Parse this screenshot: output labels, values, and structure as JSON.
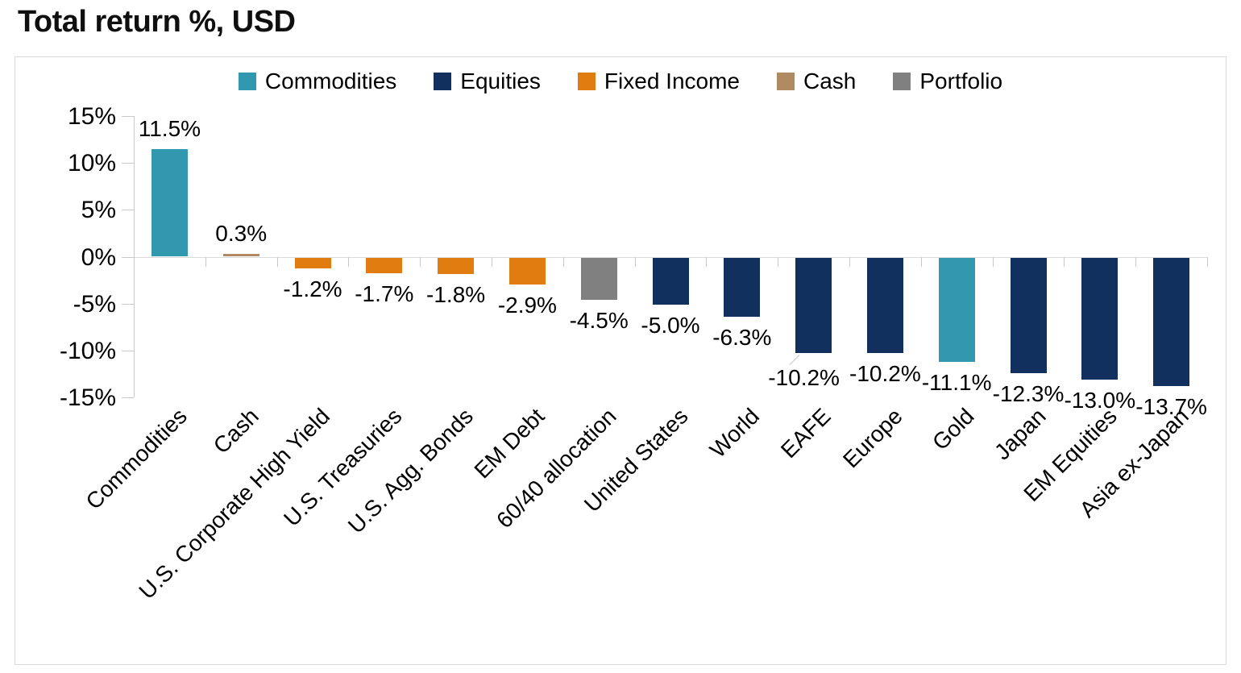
{
  "chart_data": {
    "type": "bar",
    "title": "Total return %, USD",
    "xlabel": "",
    "ylabel": "",
    "ylim": [
      -15,
      15
    ],
    "y_tick_step": 5,
    "y_tick_labels": [
      "15%",
      "10%",
      "5%",
      "0%",
      "-5%",
      "-10%",
      "-15%"
    ],
    "grid": "zero-line-only",
    "legend_position": "top-center",
    "legend": [
      {
        "label": "Commodities",
        "color": "#3298AF"
      },
      {
        "label": "Equities",
        "color": "#12305E"
      },
      {
        "label": "Fixed Income",
        "color": "#E07C10"
      },
      {
        "label": "Cash",
        "color": "#B08A63"
      },
      {
        "label": "Portfolio",
        "color": "#808080"
      }
    ],
    "categories": [
      "Commodities",
      "Cash",
      "U.S. Corporate High Yield",
      "U.S. Treasuries",
      "U.S. Agg. Bonds",
      "EM Debt",
      "60/40 allocation",
      "United States",
      "World",
      "EAFE",
      "Europe",
      "Gold",
      "Japan",
      "EM Equities",
      "Asia ex-Japan"
    ],
    "values": [
      11.5,
      0.3,
      -1.2,
      -1.7,
      -1.8,
      -2.9,
      -4.5,
      -5.0,
      -6.3,
      -10.2,
      -10.2,
      -11.1,
      -12.3,
      -13.0,
      -13.7
    ],
    "value_labels": [
      "11.5%",
      "0.3%",
      "-1.2%",
      "-1.7%",
      "-1.8%",
      "-2.9%",
      "-4.5%",
      "-5.0%",
      "-6.3%",
      "-10.2%",
      "-10.2%",
      "-11.1%",
      "-12.3%",
      "-13.0%",
      "-13.7%"
    ],
    "series_of_bar": [
      "Commodities",
      "Cash",
      "Fixed Income",
      "Fixed Income",
      "Fixed Income",
      "Fixed Income",
      "Portfolio",
      "Equities",
      "Equities",
      "Equities",
      "Equities",
      "Commodities",
      "Equities",
      "Equities",
      "Equities"
    ],
    "axis_color": "#c9c9c9",
    "zero_line_color": "#d9d9d9",
    "text_color": "#000000"
  }
}
